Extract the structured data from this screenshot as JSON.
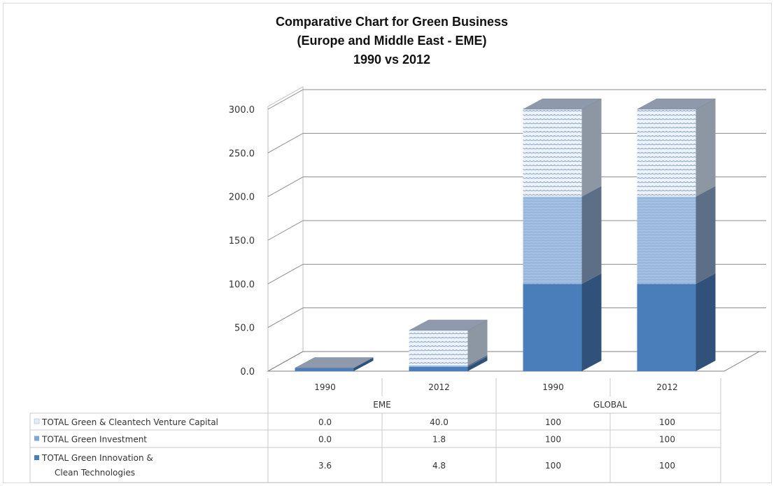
{
  "chart_data": {
    "type": "bar",
    "stacked": true,
    "three_d": true,
    "title_lines": [
      "Comparative Chart for Green Business",
      "(Europe and Middle East - EME)",
      "1990 vs 2012"
    ],
    "categories": [
      "1990",
      "2012",
      "1990",
      "2012"
    ],
    "groups": [
      {
        "name": "EME",
        "categories": [
          "1990",
          "2012"
        ]
      },
      {
        "name": "GLOBAL",
        "categories": [
          "1990",
          "2012"
        ]
      }
    ],
    "y_ticks": [
      "0.0",
      "50.0",
      "100.0",
      "150.0",
      "200.0",
      "250.0",
      "300.0"
    ],
    "ylim": [
      0,
      300
    ],
    "grid": true,
    "series": [
      {
        "name": "TOTAL Green Innovation & Clean Technologies",
        "label_lines": [
          "TOTAL Green Innovation &",
          "Clean Technologies"
        ],
        "values": [
          3.6,
          4.8,
          100,
          100
        ],
        "labels": [
          "3.6",
          "4.8",
          "100",
          "100"
        ],
        "color": "#4a7ebb"
      },
      {
        "name": "TOTAL Green Investment",
        "label_lines": [
          "TOTAL Green Investment"
        ],
        "values": [
          0.0,
          1.8,
          100,
          100
        ],
        "labels": [
          "0.0",
          "1.8",
          "100",
          "100"
        ],
        "color": "#94b3d9"
      },
      {
        "name": "TOTAL Green & Cleantech Venture Capital",
        "label_lines": [
          "TOTAL Green & Cleantech Venture Capital"
        ],
        "values": [
          0.0,
          40.0,
          100,
          100
        ],
        "labels": [
          "0.0",
          "40.0",
          "100",
          "100"
        ],
        "color": "#dce7f4"
      }
    ]
  }
}
